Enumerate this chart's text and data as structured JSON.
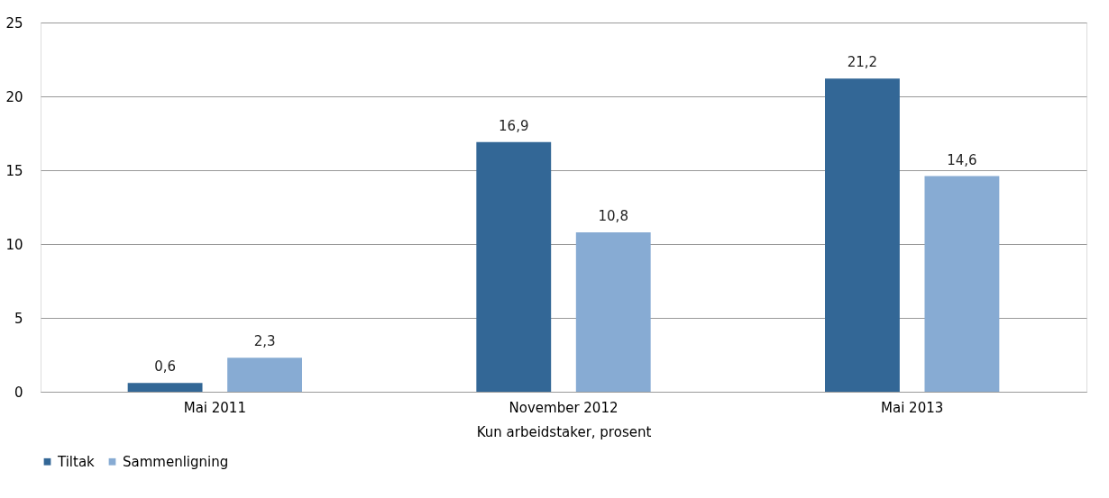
{
  "chart_data": {
    "type": "bar",
    "xlabel": "Kun arbeidstaker, prosent",
    "categories": [
      "Mai 2011",
      "November 2012",
      "Mai 2013"
    ],
    "series": [
      {
        "name": "Tiltak",
        "color": "#336796",
        "values": [
          0.6,
          16.9,
          21.2
        ],
        "value_labels": [
          "0,6",
          "16,9",
          "21,2"
        ]
      },
      {
        "name": "Sammenligning",
        "color": "#87abd3",
        "values": [
          2.3,
          10.8,
          14.6
        ],
        "value_labels": [
          "2,3",
          "10,8",
          "14,6"
        ]
      }
    ],
    "ylim": [
      0,
      25
    ],
    "yticks": [
      0,
      5,
      10,
      15,
      20,
      25
    ],
    "grid": "y",
    "legend": "bottom"
  }
}
